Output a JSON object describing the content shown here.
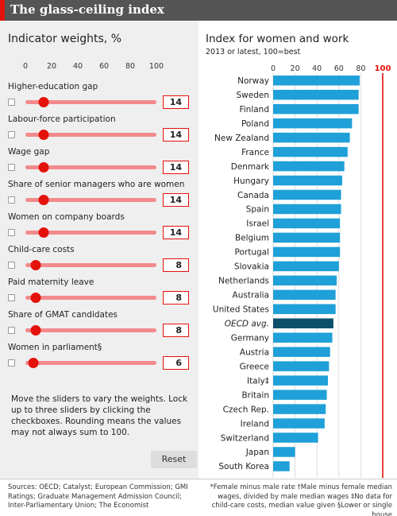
{
  "header": {
    "title": "The glass-ceiling index"
  },
  "left_panel": {
    "heading": "Indicator weights, %",
    "scale_ticks": [
      "0",
      "20",
      "40",
      "60",
      "80",
      "100"
    ],
    "indicators": [
      {
        "label": "Higher-education gap",
        "value": "14",
        "weight": 14
      },
      {
        "label": "Labour-force participation",
        "value": "14",
        "weight": 14
      },
      {
        "label": "Wage gap",
        "value": "14",
        "weight": 14
      },
      {
        "label": "Share of senior managers who are women",
        "value": "14",
        "weight": 14
      },
      {
        "label": "Women on company boards",
        "value": "14",
        "weight": 14
      },
      {
        "label": "Child-care costs",
        "value": "8",
        "weight": 8
      },
      {
        "label": "Paid maternity leave",
        "value": "8",
        "weight": 8
      },
      {
        "label": "Share of GMAT candidates",
        "value": "8",
        "weight": 8
      },
      {
        "label": "Women in parliament§",
        "value": "6",
        "weight": 6
      }
    ],
    "instructions": "Move the sliders to vary the weights. Lock up to three sliders by clicking the checkboxes. Rounding means the values may not always sum to 100.",
    "reset_label": "Reset"
  },
  "right_panel": {
    "title": "Index for women and work",
    "subtitle": "2013 or latest, 100=best"
  },
  "chart_data": {
    "type": "bar",
    "orientation": "horizontal",
    "title": "Index for women and work",
    "subtitle": "2013 or latest, 100=best",
    "xlim": [
      0,
      100
    ],
    "x_ticks": [
      "0",
      "20",
      "40",
      "60",
      "80",
      "100"
    ],
    "categories": [
      "Norway",
      "Sweden",
      "Finland",
      "Poland",
      "New Zealand",
      "France",
      "Denmark",
      "Hungary",
      "Canada",
      "Spain",
      "Israel",
      "Belgium",
      "Portugal",
      "Slovakia",
      "Netherlands",
      "Australia",
      "United States",
      "OECD avg.",
      "Germany",
      "Austria",
      "Greece",
      "Italy‡",
      "Britain",
      "Czech Rep.",
      "Ireland",
      "Switzerland",
      "Japan",
      "South Korea"
    ],
    "values": [
      79,
      78,
      78,
      72,
      70,
      68,
      65,
      63,
      62,
      62,
      61,
      61,
      61,
      60,
      58,
      57,
      57,
      55,
      54,
      52,
      51,
      50,
      49,
      48,
      47,
      41,
      20,
      15
    ],
    "highlight": "OECD avg.",
    "colors": {
      "bar": "#1fa0d8",
      "highlight": "#0c4f6b",
      "reference_line": "#e3120b"
    },
    "grid": true
  },
  "footer": {
    "sources": "Sources: OECD; Catalyst; European Commission; GMI Ratings; Graduate Management Admission Council; Inter-Parliamentary Union; The Economist",
    "notes": "*Female minus male rate †Male minus female median wages, divided by male median wages ‡No data for child-care costs, median value given §Lower or single house"
  }
}
